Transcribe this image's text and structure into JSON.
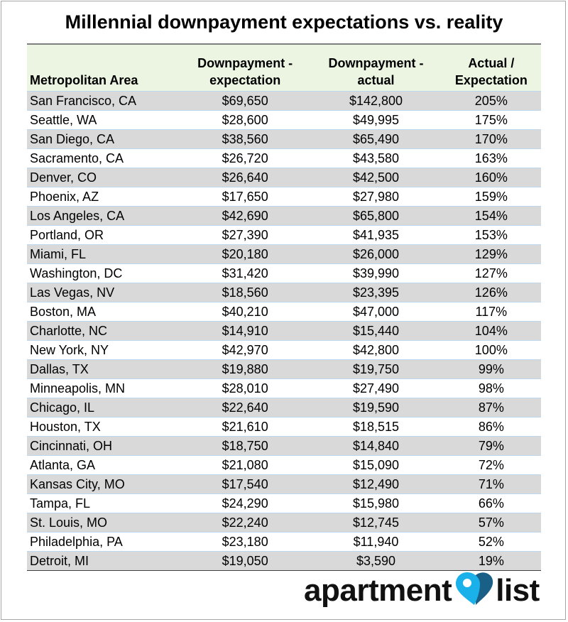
{
  "title": "Millennial downpayment expectations vs. reality",
  "chart_data": {
    "type": "table",
    "title": "Millennial downpayment expectations vs. reality",
    "columns": [
      "Metropolitan Area",
      "Downpayment - expectation",
      "Downpayment - actual",
      "Actual / Expectation"
    ],
    "header_lines": [
      [
        "Metropolitan Area"
      ],
      [
        "Downpayment -",
        "expectation"
      ],
      [
        "Downpayment -",
        "actual"
      ],
      [
        "Actual /",
        "Expectation"
      ]
    ],
    "rows": [
      [
        "San Francisco, CA",
        "$69,650",
        "$142,800",
        "205%"
      ],
      [
        "Seattle, WA",
        "$28,600",
        "$49,995",
        "175%"
      ],
      [
        "San Diego, CA",
        "$38,560",
        "$65,490",
        "170%"
      ],
      [
        "Sacramento, CA",
        "$26,720",
        "$43,580",
        "163%"
      ],
      [
        "Denver, CO",
        "$26,640",
        "$42,500",
        "160%"
      ],
      [
        "Phoenix, AZ",
        "$17,650",
        "$27,980",
        "159%"
      ],
      [
        "Los Angeles, CA",
        "$42,690",
        "$65,800",
        "154%"
      ],
      [
        "Portland, OR",
        "$27,390",
        "$41,935",
        "153%"
      ],
      [
        "Miami, FL",
        "$20,180",
        "$26,000",
        "129%"
      ],
      [
        "Washington, DC",
        "$31,420",
        "$39,990",
        "127%"
      ],
      [
        "Las Vegas, NV",
        "$18,560",
        "$23,395",
        "126%"
      ],
      [
        "Boston, MA",
        "$40,210",
        "$47,000",
        "117%"
      ],
      [
        "Charlotte, NC",
        "$14,910",
        "$15,440",
        "104%"
      ],
      [
        "New York, NY",
        "$42,970",
        "$42,800",
        "100%"
      ],
      [
        "Dallas, TX",
        "$19,880",
        "$19,750",
        "99%"
      ],
      [
        "Minneapolis, MN",
        "$28,010",
        "$27,490",
        "98%"
      ],
      [
        "Chicago, IL",
        "$22,640",
        "$19,590",
        "87%"
      ],
      [
        "Houston, TX",
        "$21,610",
        "$18,515",
        "86%"
      ],
      [
        "Cincinnati, OH",
        "$18,750",
        "$14,840",
        "79%"
      ],
      [
        "Atlanta, GA",
        "$21,080",
        "$15,090",
        "72%"
      ],
      [
        "Kansas City, MO",
        "$17,540",
        "$12,490",
        "71%"
      ],
      [
        "Tampa, FL",
        "$24,290",
        "$15,980",
        "66%"
      ],
      [
        "St. Louis, MO",
        "$22,240",
        "$12,745",
        "57%"
      ],
      [
        "Philadelphia, PA",
        "$23,180",
        "$11,940",
        "52%"
      ],
      [
        "Detroit, MI",
        "$19,050",
        "$3,590",
        "19%"
      ]
    ],
    "colors": {
      "header_bg": "#ebf5e1",
      "stripe_bg": "#d9d9d9",
      "row_rule": "#bdd7ee"
    }
  },
  "logo": {
    "text_left": "apartment",
    "text_right": "list",
    "pin_colors": [
      "#1ab0ea",
      "#1a5f86"
    ]
  }
}
